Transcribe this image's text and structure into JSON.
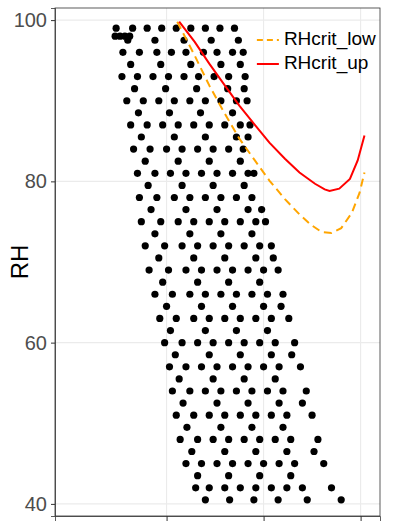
{
  "chart_data": {
    "type": "scatter",
    "ylabel": "RH",
    "xlim": [
      -1.5,
      32
    ],
    "ylim": [
      38.5,
      101.5
    ],
    "xticks": [
      10,
      20,
      30
    ],
    "yticks": [
      40,
      60,
      80,
      100
    ],
    "grid": true,
    "tick_labels": "y",
    "legend": "upper right",
    "series": [
      {
        "type": "scatter",
        "color": "#000000",
        "marker": "circle",
        "x": [
          4.8,
          6.5,
          8.0,
          9.5,
          11.0,
          12.5,
          14.0,
          15.5,
          17.0,
          4.7,
          5.2,
          5.7,
          6.2,
          6.0,
          8.8,
          11.8,
          14.6,
          17.4,
          5.5,
          7.2,
          9.0,
          10.5,
          12.0,
          13.8,
          15.2,
          16.8,
          17.9,
          6.3,
          9.4,
          12.5,
          15.6,
          17.6,
          5.4,
          7.0,
          8.6,
          10.2,
          11.8,
          13.3,
          14.9,
          16.4,
          18.1,
          6.7,
          9.9,
          13.1,
          16.3,
          18.0,
          5.9,
          7.6,
          9.2,
          10.8,
          12.4,
          14.0,
          15.6,
          17.2,
          18.3,
          7.1,
          10.3,
          13.5,
          16.8,
          6.3,
          8.0,
          9.6,
          11.2,
          12.8,
          14.4,
          16.0,
          17.6,
          18.6,
          7.4,
          10.8,
          14.0,
          17.2,
          18.4,
          6.6,
          8.3,
          10.0,
          11.6,
          13.2,
          14.8,
          16.4,
          17.9,
          7.8,
          11.2,
          14.4,
          17.6,
          7.0,
          8.8,
          10.4,
          12.0,
          13.6,
          15.2,
          16.8,
          18.4,
          19.0,
          8.1,
          11.6,
          14.8,
          18.0,
          7.2,
          9.0,
          10.8,
          12.4,
          14.0,
          15.6,
          17.2,
          18.8,
          8.4,
          12.0,
          15.2,
          18.4,
          19.8,
          7.4,
          9.4,
          11.2,
          12.8,
          14.4,
          16.0,
          17.6,
          19.2,
          20.2,
          8.8,
          12.4,
          15.6,
          18.8,
          7.8,
          9.8,
          11.6,
          13.2,
          14.8,
          16.4,
          18.0,
          19.6,
          20.8,
          9.2,
          12.8,
          16.0,
          19.2,
          21.0,
          8.2,
          10.2,
          12.0,
          13.6,
          15.2,
          16.8,
          18.4,
          20.0,
          21.5,
          9.6,
          13.2,
          16.4,
          19.6,
          8.8,
          10.6,
          12.4,
          14.0,
          15.6,
          17.2,
          18.8,
          20.4,
          22.0,
          10.0,
          13.6,
          16.8,
          20.0,
          21.8,
          9.3,
          11.0,
          12.8,
          14.4,
          16.0,
          17.6,
          19.2,
          20.8,
          22.6,
          10.4,
          14.0,
          17.2,
          20.4,
          9.8,
          11.6,
          13.2,
          14.8,
          16.4,
          18.0,
          19.6,
          21.2,
          23.2,
          10.9,
          14.4,
          17.6,
          20.8,
          22.9,
          10.3,
          12.0,
          13.6,
          15.2,
          16.8,
          18.4,
          20.0,
          21.6,
          23.8,
          11.3,
          14.8,
          18.0,
          21.2,
          10.6,
          12.4,
          14.0,
          15.6,
          17.2,
          18.8,
          20.4,
          22.0,
          24.4,
          11.7,
          15.2,
          18.4,
          21.6,
          24.0,
          11.0,
          12.8,
          14.4,
          16.0,
          17.6,
          19.2,
          20.8,
          22.4,
          25.0,
          12.1,
          15.6,
          18.8,
          22.0,
          11.4,
          13.2,
          14.8,
          16.4,
          18.0,
          19.6,
          21.2,
          22.8,
          25.6,
          12.6,
          16.0,
          19.2,
          22.4,
          25.2,
          12.0,
          13.6,
          15.2,
          16.8,
          18.4,
          20.0,
          21.6,
          23.2,
          26.2,
          13.2,
          16.4,
          19.6,
          22.8,
          13.0,
          14.4,
          16.0,
          17.6,
          19.2,
          20.8,
          22.4,
          24.0,
          27.0,
          14.0,
          16.5,
          19.0,
          21.5,
          24.5,
          28.0
        ],
        "values": [
          99,
          99,
          99,
          99,
          99,
          99,
          99,
          99,
          99,
          98,
          98,
          98,
          98,
          97.5,
          97.5,
          97.5,
          97.5,
          97.5,
          96,
          96,
          96,
          96,
          96,
          96,
          96,
          96,
          96,
          94.5,
          94.5,
          94.5,
          94.5,
          94.5,
          93,
          93,
          93,
          93,
          93,
          93,
          93,
          93,
          93,
          91.5,
          91.5,
          91.5,
          91.5,
          91.5,
          90,
          90,
          90,
          90,
          90,
          90,
          90,
          90,
          90,
          88.5,
          88.5,
          88.5,
          88.5,
          87,
          87,
          87,
          87,
          87,
          87,
          87,
          87,
          87,
          85.5,
          85.5,
          85.5,
          85.5,
          85.5,
          84,
          84,
          84,
          84,
          84,
          84,
          84,
          84,
          82.5,
          82.5,
          82.5,
          82.5,
          81,
          81,
          81,
          81,
          81,
          81,
          81,
          81,
          81,
          79.5,
          79.5,
          79.5,
          79.5,
          78,
          78,
          78,
          78,
          78,
          78,
          78,
          78,
          76.5,
          76.5,
          76.5,
          76.5,
          76.5,
          75,
          75,
          75,
          75,
          75,
          75,
          75,
          75,
          75,
          73.5,
          73.5,
          73.5,
          73.5,
          72,
          72,
          72,
          72,
          72,
          72,
          72,
          72,
          72,
          70.5,
          70.5,
          70.5,
          70.5,
          70.5,
          69,
          69,
          69,
          69,
          69,
          69,
          69,
          69,
          69,
          67.5,
          67.5,
          67.5,
          67.5,
          66,
          66,
          66,
          66,
          66,
          66,
          66,
          66,
          66,
          64.5,
          64.5,
          64.5,
          64.5,
          64.5,
          63,
          63,
          63,
          63,
          63,
          63,
          63,
          63,
          63,
          61.5,
          61.5,
          61.5,
          61.5,
          60,
          60,
          60,
          60,
          60,
          60,
          60,
          60,
          60,
          58.5,
          58.5,
          58.5,
          58.5,
          58.5,
          57,
          57,
          57,
          57,
          57,
          57,
          57,
          57,
          57,
          55.5,
          55.5,
          55.5,
          55.5,
          54,
          54,
          54,
          54,
          54,
          54,
          54,
          54,
          54,
          52.5,
          52.5,
          52.5,
          52.5,
          52.5,
          51,
          51,
          51,
          51,
          51,
          51,
          51,
          51,
          51,
          49.5,
          49.5,
          49.5,
          49.5,
          48,
          48,
          48,
          48,
          48,
          48,
          48,
          48,
          48,
          46.5,
          46.5,
          46.5,
          46.5,
          46.5,
          45,
          45,
          45,
          45,
          45,
          45,
          45,
          45,
          45,
          43.5,
          43.5,
          43.5,
          43.5,
          42,
          42,
          42,
          42,
          42,
          42,
          42,
          42,
          42,
          40.5,
          40.5,
          40.5,
          40.5,
          40.5,
          40.5
        ]
      },
      {
        "name": "RHcrit_low",
        "type": "line",
        "color": "#FFA500",
        "line_style": "dashed",
        "x": [
          11.1,
          12.9,
          14.4,
          16.0,
          17.5,
          19.1,
          20.6,
          22.2,
          23.7,
          24.9,
          26.0,
          27.0,
          28.0,
          29.1,
          29.9,
          30.4
        ],
        "values": [
          99.8,
          95.6,
          91.9,
          88.4,
          85.3,
          82.6,
          80.1,
          77.8,
          75.9,
          74.6,
          73.7,
          73.6,
          74.2,
          76.1,
          78.6,
          81.1
        ]
      },
      {
        "name": "RHcrit_up",
        "type": "line",
        "color": "#FF0000",
        "line_style": "solid",
        "x": [
          11.3,
          12.9,
          14.4,
          16.0,
          17.5,
          19.1,
          20.6,
          22.2,
          23.7,
          25.3,
          26.3,
          26.8,
          27.8,
          28.9,
          29.7,
          30.4
        ],
        "values": [
          99.8,
          97.3,
          94.6,
          91.9,
          89.4,
          87.0,
          84.8,
          82.8,
          81.1,
          79.7,
          79.0,
          78.8,
          79.1,
          80.3,
          82.6,
          85.7
        ]
      }
    ]
  }
}
